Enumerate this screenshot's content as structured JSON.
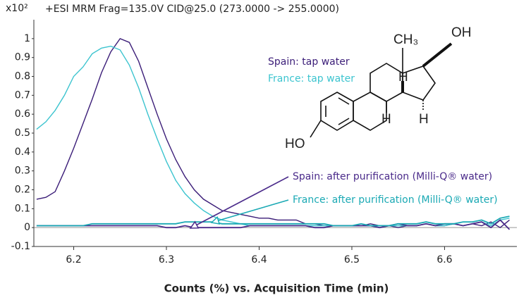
{
  "chart_data": {
    "type": "line",
    "title": "+ESI MRM Frag=135.0V CID@25.0 (273.0000 -> 255.0000)",
    "y_scale_label": "x10²",
    "xlabel": "Counts (%) vs. Acquisition Time (min)",
    "x": [
      6.16,
      6.17,
      6.18,
      6.19,
      6.2,
      6.21,
      6.22,
      6.23,
      6.24,
      6.25,
      6.26,
      6.27,
      6.28,
      6.29,
      6.3,
      6.31,
      6.32,
      6.33,
      6.34,
      6.35,
      6.36,
      6.37,
      6.38,
      6.39,
      6.4,
      6.41,
      6.42,
      6.43,
      6.44,
      6.45,
      6.46,
      6.47,
      6.48,
      6.49,
      6.5,
      6.51,
      6.52,
      6.53,
      6.54,
      6.55,
      6.56,
      6.57,
      6.58,
      6.59,
      6.6,
      6.61,
      6.62,
      6.63,
      6.64,
      6.65,
      6.66,
      6.67
    ],
    "series": [
      {
        "name": "Spain: tap water",
        "color": "#3b1d78",
        "values": [
          0.15,
          0.16,
          0.19,
          0.3,
          0.42,
          0.55,
          0.68,
          0.82,
          0.93,
          1.0,
          0.98,
          0.88,
          0.74,
          0.6,
          0.47,
          0.36,
          0.27,
          0.2,
          0.15,
          0.12,
          0.09,
          0.08,
          0.07,
          0.06,
          0.05,
          0.05,
          0.04,
          0.04,
          0.04,
          0.02,
          0.02,
          0.01,
          0.01,
          0.01,
          0.01,
          0.01,
          0.02,
          0.01,
          0.01,
          0.0,
          0.01,
          0.01,
          0.02,
          0.01,
          0.01,
          0.02,
          0.01,
          0.02,
          0.01,
          0.03,
          0.0,
          0.04
        ]
      },
      {
        "name": "France: tap water",
        "color": "#3cc4cf",
        "values": [
          0.52,
          0.56,
          0.62,
          0.7,
          0.8,
          0.85,
          0.92,
          0.95,
          0.96,
          0.94,
          0.86,
          0.74,
          0.6,
          0.47,
          0.35,
          0.25,
          0.18,
          0.13,
          0.09,
          0.06,
          0.04,
          0.03,
          0.02,
          0.01,
          0.01,
          0.01,
          0.01,
          0.01,
          0.01,
          0.01,
          0.01,
          0.01,
          0.01,
          0.01,
          0.01,
          0.01,
          0.01,
          0.01,
          0.01,
          0.01,
          0.01,
          0.01,
          0.02,
          0.01,
          0.01,
          0.02,
          0.01,
          0.02,
          0.03,
          0.01,
          0.04,
          0.05
        ]
      },
      {
        "name": "Spain: after purification (Milli-Q® water)",
        "color": "#4a2a8a",
        "values": [
          0.01,
          0.01,
          0.01,
          0.01,
          0.01,
          0.01,
          0.01,
          0.01,
          0.01,
          0.01,
          0.01,
          0.01,
          0.01,
          0.01,
          0.0,
          0.0,
          0.01,
          0.0,
          0.0,
          0.0,
          0.0,
          0.0,
          0.0,
          0.01,
          0.01,
          0.01,
          0.01,
          0.01,
          0.01,
          0.01,
          0.0,
          0.0,
          0.01,
          0.01,
          0.01,
          0.01,
          0.01,
          0.0,
          0.01,
          0.02,
          0.01,
          0.01,
          0.02,
          0.01,
          0.02,
          0.02,
          0.01,
          0.02,
          0.03,
          0.0,
          0.04,
          -0.01
        ]
      },
      {
        "name": "France: after purification (Milli-Q® water)",
        "color": "#1aa9b4",
        "values": [
          0.01,
          0.01,
          0.01,
          0.01,
          0.01,
          0.01,
          0.02,
          0.02,
          0.02,
          0.02,
          0.02,
          0.02,
          0.02,
          0.02,
          0.02,
          0.02,
          0.03,
          0.03,
          0.03,
          0.03,
          0.02,
          0.02,
          0.02,
          0.02,
          0.02,
          0.02,
          0.02,
          0.02,
          0.02,
          0.02,
          0.02,
          0.02,
          0.01,
          0.01,
          0.01,
          0.02,
          0.01,
          0.01,
          0.01,
          0.02,
          0.02,
          0.02,
          0.03,
          0.02,
          0.02,
          0.02,
          0.03,
          0.03,
          0.04,
          0.02,
          0.05,
          0.06
        ]
      }
    ],
    "xlim": [
      6.157,
      6.678
    ],
    "xticks": [
      6.2,
      6.3,
      6.4,
      6.5,
      6.6
    ],
    "ylim": [
      -0.1,
      1.1
    ],
    "yticks": [
      -0.1,
      0,
      0.1,
      0.2,
      0.3,
      0.4,
      0.5,
      0.6,
      0.7,
      0.8,
      0.9,
      1
    ],
    "molecule_labels": [
      "CH₃",
      "OH",
      "H",
      "H",
      "H",
      "HO"
    ]
  }
}
